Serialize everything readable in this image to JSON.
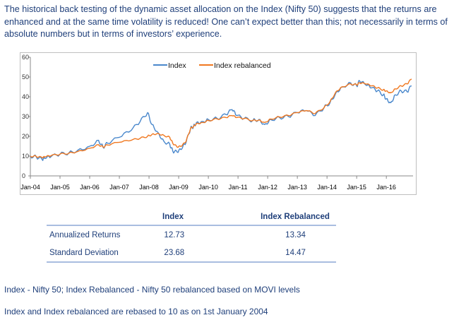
{
  "intro_text": "The historical back testing of the dynamic asset allocation on the Index (Nifty 50) suggests that the returns are enhanced and at the same time volatility is reduced! One can’t expect better than this; not necessarily in terms of absolute numbers but in terms of investors’ experience.",
  "chart_data": {
    "type": "line",
    "title": "",
    "xlabel": "",
    "ylabel": "",
    "ylim": [
      0,
      60
    ],
    "yticks": [
      0,
      10,
      20,
      30,
      40,
      50,
      60
    ],
    "x_start": 2004.0,
    "x_end": 2016.9,
    "x_tick_labels": [
      "Jan-04",
      "Jan-05",
      "Jan-06",
      "Jan-07",
      "Jan-08",
      "Jan-09",
      "Jan-10",
      "Jan-11",
      "Jan-12",
      "Jan-13",
      "Jan-14",
      "Jan-15",
      "Jan-16"
    ],
    "x_ticks": [
      2004,
      2005,
      2006,
      2007,
      2008,
      2009,
      2010,
      2011,
      2012,
      2013,
      2014,
      2015,
      2016
    ],
    "grid": false,
    "legend_position": "top-center",
    "series": [
      {
        "name": "Index",
        "color": "#4a88cc",
        "x": [
          2004.0,
          2004.2,
          2004.4,
          2004.5,
          2004.7,
          2005.0,
          2005.3,
          2005.6,
          2006.0,
          2006.3,
          2006.45,
          2006.6,
          2007.0,
          2007.4,
          2007.7,
          2007.95,
          2008.1,
          2008.3,
          2008.5,
          2008.7,
          2008.8,
          2008.95,
          2009.1,
          2009.25,
          2009.4,
          2009.5,
          2009.6,
          2009.8,
          2010.0,
          2010.3,
          2010.6,
          2010.8,
          2010.95,
          2011.2,
          2011.5,
          2011.7,
          2011.9,
          2012.1,
          2012.4,
          2012.7,
          2013.0,
          2013.3,
          2013.6,
          2013.9,
          2014.1,
          2014.3,
          2014.5,
          2014.8,
          2015.0,
          2015.1,
          2015.3,
          2015.5,
          2015.7,
          2015.9,
          2016.0,
          2016.15,
          2016.3,
          2016.5,
          2016.7,
          2016.85
        ],
        "y": [
          10.0,
          9.6,
          8.2,
          8.8,
          9.8,
          11.0,
          11.6,
          13.0,
          15.0,
          18.0,
          14.5,
          16.5,
          19.5,
          23.0,
          27.5,
          32.0,
          26.0,
          22.0,
          17.5,
          16.0,
          12.5,
          12.0,
          13.5,
          17.0,
          24.0,
          25.0,
          27.0,
          27.5,
          28.5,
          29.0,
          31.0,
          33.5,
          30.5,
          29.0,
          28.0,
          28.5,
          26.0,
          28.5,
          29.5,
          30.0,
          32.0,
          33.0,
          30.5,
          34.5,
          37.0,
          42.0,
          45.0,
          47.0,
          45.5,
          48.0,
          46.0,
          44.5,
          43.0,
          41.0,
          39.0,
          37.0,
          41.0,
          43.0,
          42.5,
          45.5
        ]
      },
      {
        "name": "Index rebalanced",
        "color": "#f07820",
        "x": [
          2004.0,
          2004.2,
          2004.4,
          2004.5,
          2004.7,
          2005.0,
          2005.3,
          2005.6,
          2006.0,
          2006.3,
          2006.45,
          2006.6,
          2007.0,
          2007.4,
          2007.7,
          2007.95,
          2008.1,
          2008.3,
          2008.5,
          2008.7,
          2008.8,
          2008.95,
          2009.1,
          2009.25,
          2009.4,
          2009.5,
          2009.6,
          2009.8,
          2010.0,
          2010.3,
          2010.6,
          2010.8,
          2010.95,
          2011.2,
          2011.5,
          2011.7,
          2011.9,
          2012.1,
          2012.4,
          2012.7,
          2013.0,
          2013.3,
          2013.6,
          2013.9,
          2014.1,
          2014.3,
          2014.5,
          2014.8,
          2015.0,
          2015.1,
          2015.3,
          2015.5,
          2015.7,
          2015.9,
          2016.0,
          2016.15,
          2016.3,
          2016.5,
          2016.7,
          2016.85
        ],
        "y": [
          10.0,
          9.8,
          9.2,
          9.6,
          10.2,
          11.0,
          11.5,
          12.4,
          14.0,
          15.8,
          14.6,
          15.6,
          17.0,
          18.0,
          19.0,
          20.0,
          21.0,
          21.5,
          20.5,
          19.5,
          16.5,
          14.5,
          15.0,
          17.5,
          24.0,
          25.0,
          26.5,
          27.0,
          28.0,
          28.8,
          29.5,
          30.5,
          29.5,
          29.0,
          28.0,
          28.3,
          27.0,
          28.8,
          29.8,
          30.5,
          32.0,
          33.0,
          31.5,
          34.5,
          37.5,
          42.5,
          45.0,
          46.5,
          46.0,
          47.0,
          46.5,
          45.5,
          44.5,
          43.5,
          43.0,
          42.0,
          44.0,
          45.5,
          46.5,
          49.0
        ]
      }
    ]
  },
  "stats": {
    "headers": [
      "",
      "Index",
      "Index Rebalanced"
    ],
    "rows": [
      {
        "label": "Annualized Returns",
        "index": "12.73",
        "rebalanced": "13.34"
      },
      {
        "label": "Standard Deviation",
        "index": "23.68",
        "rebalanced": "14.47"
      }
    ]
  },
  "notes": {
    "line1": "Index - Nifty 50; Index Rebalanced - Nifty 50 rebalanced based on MOVI levels",
    "line2": "Index and Index rebalanced are rebased to 10 as on 1st January 2004"
  }
}
